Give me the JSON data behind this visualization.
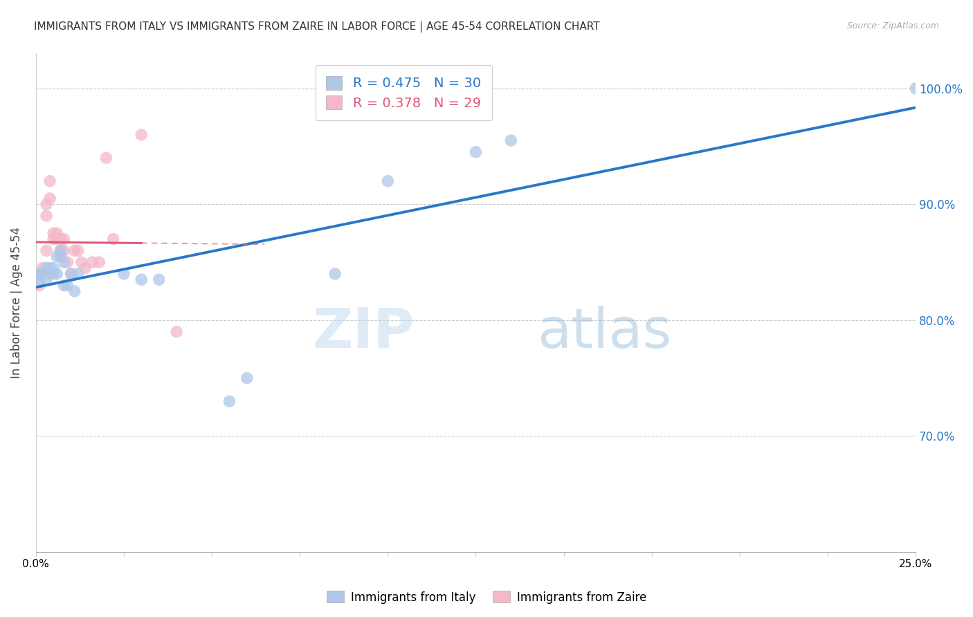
{
  "title": "IMMIGRANTS FROM ITALY VS IMMIGRANTS FROM ZAIRE IN LABOR FORCE | AGE 45-54 CORRELATION CHART",
  "source": "Source: ZipAtlas.com",
  "ylabel": "In Labor Force | Age 45-54",
  "x_min": 0.0,
  "x_max": 0.25,
  "y_min": 0.6,
  "y_max": 1.03,
  "yticks": [
    0.7,
    0.8,
    0.9,
    1.0
  ],
  "ytick_labels": [
    "70.0%",
    "80.0%",
    "90.0%",
    "100.0%"
  ],
  "xticks": [
    0.0,
    0.025,
    0.05,
    0.075,
    0.1,
    0.125,
    0.15,
    0.175,
    0.2,
    0.225,
    0.25
  ],
  "xtick_labels_show": [
    "0.0%",
    "",
    "",
    "",
    "",
    "",
    "",
    "",
    "",
    "",
    "25.0%"
  ],
  "italy_color": "#aec8e8",
  "zaire_color": "#f4b8c8",
  "italy_line_color": "#2878c8",
  "zaire_line_color": "#e05878",
  "watermark_color": "#c8dff0",
  "italy_R": 0.475,
  "italy_N": 30,
  "zaire_R": 0.378,
  "zaire_N": 29,
  "italy_x": [
    0.001,
    0.001,
    0.002,
    0.002,
    0.003,
    0.003,
    0.004,
    0.004,
    0.005,
    0.005,
    0.006,
    0.006,
    0.007,
    0.007,
    0.008,
    0.008,
    0.009,
    0.01,
    0.011,
    0.012,
    0.025,
    0.03,
    0.035,
    0.055,
    0.06,
    0.085,
    0.1,
    0.125,
    0.135,
    0.25
  ],
  "italy_y": [
    0.84,
    0.835,
    0.84,
    0.84,
    0.845,
    0.835,
    0.845,
    0.84,
    0.84,
    0.845,
    0.855,
    0.84,
    0.86,
    0.855,
    0.85,
    0.83,
    0.83,
    0.84,
    0.825,
    0.84,
    0.84,
    0.835,
    0.835,
    0.73,
    0.75,
    0.84,
    0.92,
    0.945,
    0.955,
    1.0
  ],
  "zaire_x": [
    0.001,
    0.001,
    0.002,
    0.002,
    0.003,
    0.003,
    0.003,
    0.004,
    0.004,
    0.005,
    0.005,
    0.006,
    0.006,
    0.007,
    0.007,
    0.008,
    0.008,
    0.009,
    0.01,
    0.011,
    0.012,
    0.013,
    0.014,
    0.016,
    0.018,
    0.02,
    0.022,
    0.03,
    0.04
  ],
  "zaire_y": [
    0.84,
    0.83,
    0.845,
    0.84,
    0.9,
    0.89,
    0.86,
    0.905,
    0.92,
    0.875,
    0.87,
    0.87,
    0.875,
    0.87,
    0.86,
    0.86,
    0.87,
    0.85,
    0.84,
    0.86,
    0.86,
    0.85,
    0.845,
    0.85,
    0.85,
    0.94,
    0.87,
    0.96,
    0.79
  ],
  "zaire_line_end_solid": 0.03,
  "zaire_line_end_dash": 0.065
}
